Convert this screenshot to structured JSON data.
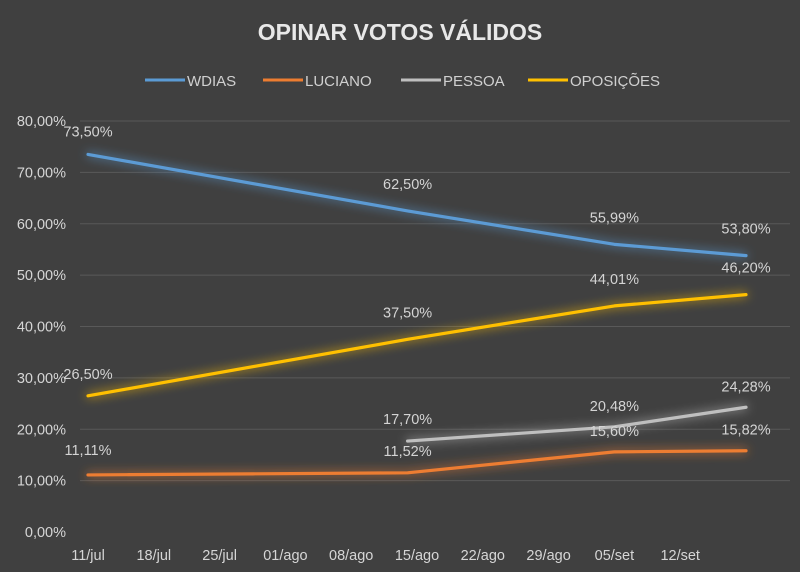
{
  "chart_data": {
    "type": "line",
    "title": "OPINAR VOTOS VÁLIDOS",
    "xlabel": "",
    "ylabel": "",
    "ylim": [
      0,
      80
    ],
    "y_ticks": [
      "0,00%",
      "10,00%",
      "20,00%",
      "30,00%",
      "40,00%",
      "50,00%",
      "60,00%",
      "70,00%",
      "80,00%"
    ],
    "y_tick_values": [
      0,
      10,
      20,
      30,
      40,
      50,
      60,
      70,
      80
    ],
    "x_ticks": [
      "11/jul",
      "18/jul",
      "25/jul",
      "01/ago",
      "08/ago",
      "15/ago",
      "22/ago",
      "29/ago",
      "05/set",
      "12/set"
    ],
    "x_unit": "days since 11/jul",
    "x_tick_values": [
      0,
      7,
      14,
      21,
      28,
      35,
      42,
      49,
      56,
      63
    ],
    "xlim": [
      0,
      70
    ],
    "grid": true,
    "legend_position": "top",
    "series": [
      {
        "name": "WDIAS",
        "color": "#5b9bd5",
        "x": [
          0,
          34,
          56,
          70
        ],
        "values": [
          73.5,
          62.5,
          55.99,
          53.8
        ],
        "labels": [
          "73,50%",
          "62,50%",
          "55,99%",
          "53,80%"
        ]
      },
      {
        "name": "LUCIANO",
        "color": "#ed7d31",
        "x": [
          0,
          34,
          56,
          70
        ],
        "values": [
          11.11,
          11.52,
          15.6,
          15.82
        ],
        "labels": [
          "11,11%",
          "11,52%",
          "15,60%",
          "15,82%"
        ]
      },
      {
        "name": "PESSOA",
        "color": "#bfbfbf",
        "x": [
          34,
          56,
          70
        ],
        "values": [
          17.7,
          20.48,
          24.28
        ],
        "labels": [
          "17,70%",
          "20,48%",
          "24,28%"
        ]
      },
      {
        "name": "OPOSIÇÕES",
        "color": "#ffc000",
        "x": [
          0,
          34,
          56,
          70
        ],
        "values": [
          26.5,
          37.5,
          44.01,
          46.2
        ],
        "labels": [
          "26,50%",
          "37,50%",
          "44,01%",
          "46,20%"
        ]
      }
    ]
  }
}
